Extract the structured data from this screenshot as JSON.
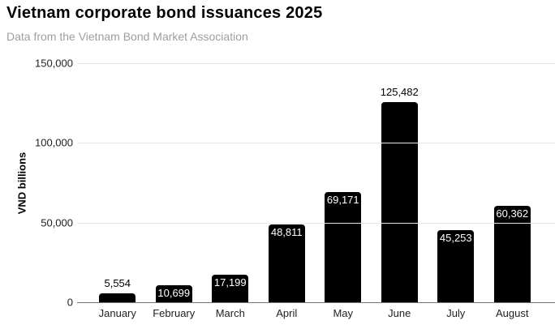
{
  "header": {
    "title": "Vietnam corporate bond issuances 2025",
    "subtitle": "Data from the Vietnam Bond Market Association"
  },
  "chart_data": {
    "type": "bar",
    "title": "Vietnam corporate bond issuances 2025",
    "subtitle": "Data from the Vietnam Bond Market Association",
    "xlabel": "",
    "ylabel": "VND billions",
    "ylim": [
      0,
      150000
    ],
    "yticks": [
      0,
      50000,
      100000,
      150000
    ],
    "ytick_labels": [
      "0",
      "50,000",
      "100,000",
      "150,000"
    ],
    "grid": true,
    "legend_position": "none",
    "categories": [
      "January",
      "February",
      "March",
      "April",
      "May",
      "June",
      "July",
      "August"
    ],
    "values": [
      5554,
      10699,
      17199,
      48811,
      69171,
      125482,
      45253,
      60362
    ],
    "value_labels": [
      "5,554",
      "10,699",
      "17,199",
      "48,811",
      "69,171",
      "125,482",
      "45,253",
      "60,362"
    ],
    "value_label_positions": [
      "above",
      "inside",
      "inside",
      "inside",
      "inside",
      "above",
      "inside",
      "inside"
    ],
    "colors": {
      "bar": "#000000",
      "gridline": "#e6e6e6",
      "baseline": "#757575",
      "label_inside": "#ffffff",
      "label_above": "#000000",
      "subtitle_text": "#9e9e9e",
      "title_text": "#000000"
    }
  }
}
